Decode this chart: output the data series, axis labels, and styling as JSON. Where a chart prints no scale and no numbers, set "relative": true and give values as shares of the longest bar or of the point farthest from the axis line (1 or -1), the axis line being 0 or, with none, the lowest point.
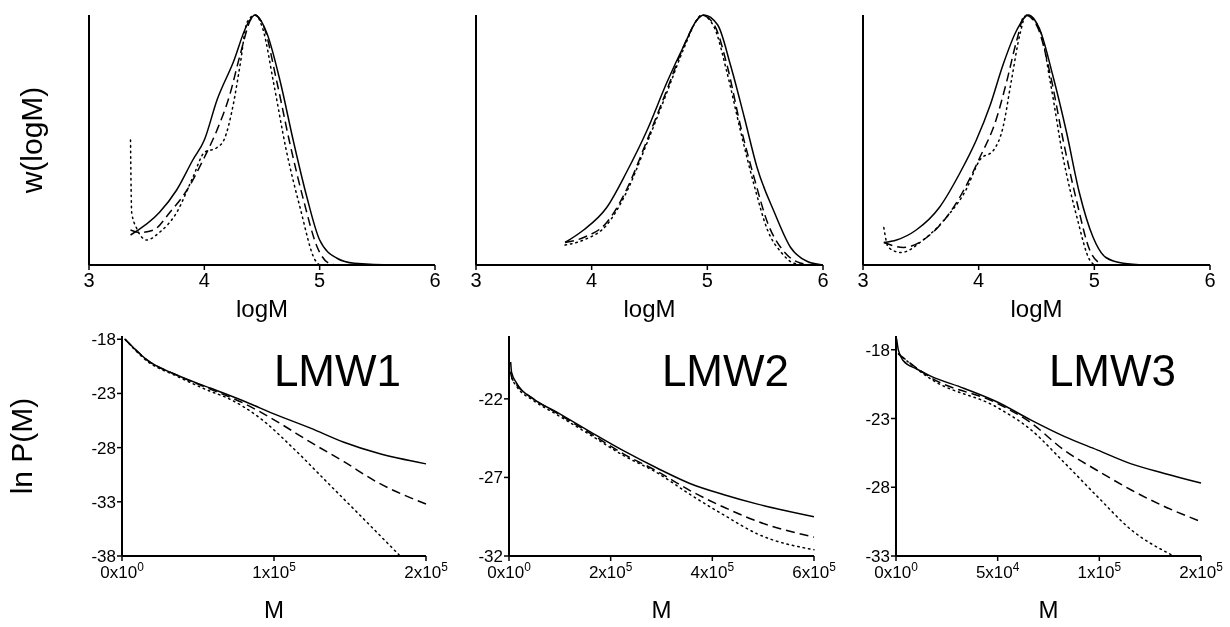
{
  "chart_data": [
    {
      "type": "line",
      "relative": true,
      "tick_labels": "x",
      "xlim": [
        3,
        6
      ],
      "xticks": [
        3,
        4,
        5,
        6
      ],
      "xlabel": "logM",
      "ylabel": "w(logM)",
      "series": [
        {
          "color": "#000000",
          "line_style": "solid",
          "x": [
            3.36,
            3.61,
            3.76,
            3.9,
            4.0,
            4.11,
            4.25,
            4.37,
            4.44,
            4.54,
            4.66,
            4.77,
            4.89,
            5.0,
            5.15,
            5.3,
            5.64,
            6.0
          ],
          "values": [
            0.12,
            0.21,
            0.3,
            0.42,
            0.5,
            0.66,
            0.81,
            0.96,
            1.0,
            0.93,
            0.73,
            0.5,
            0.27,
            0.1,
            0.027,
            0.007,
            0,
            0
          ]
        },
        {
          "color": "#000000",
          "line_style": "dashed",
          "x": [
            3.36,
            3.44,
            3.56,
            3.7,
            3.85,
            4.0,
            4.11,
            4.22,
            4.31,
            4.4,
            4.43,
            4.51,
            4.63,
            4.74,
            4.86,
            4.98,
            5.08,
            5.15
          ],
          "values": [
            0.14,
            0.13,
            0.14,
            0.21,
            0.3,
            0.43,
            0.54,
            0.68,
            0.84,
            0.98,
            1.0,
            0.96,
            0.73,
            0.49,
            0.26,
            0.07,
            0.007,
            0
          ]
        },
        {
          "color": "#000000",
          "line_style": "dotted",
          "x": [
            3.36,
            3.37,
            3.41,
            3.5,
            3.61,
            3.76,
            3.9,
            4.0,
            4.11,
            4.17,
            4.25,
            4.31,
            4.37,
            4.44,
            4.51,
            4.6,
            4.71,
            4.83,
            4.96,
            5.0
          ],
          "values": [
            0.5,
            0.21,
            0.15,
            0.1,
            0.13,
            0.21,
            0.35,
            0.45,
            0.47,
            0.5,
            0.64,
            0.8,
            0.97,
            1.0,
            0.94,
            0.73,
            0.46,
            0.23,
            0.02,
            0
          ]
        }
      ]
    },
    {
      "type": "line",
      "relative": true,
      "tick_labels": "x",
      "xlim": [
        3,
        6
      ],
      "xticks": [
        3,
        4,
        5,
        6
      ],
      "xlabel": "logM",
      "series": [
        {
          "color": "#000000",
          "line_style": "solid",
          "x": [
            3.77,
            3.93,
            4.13,
            4.3,
            4.48,
            4.65,
            4.8,
            4.91,
            4.97,
            5.09,
            5.2,
            5.32,
            5.43,
            5.58,
            5.72,
            5.87,
            6.0
          ],
          "values": [
            0.09,
            0.14,
            0.23,
            0.37,
            0.54,
            0.73,
            0.88,
            0.98,
            1.0,
            0.96,
            0.8,
            0.59,
            0.39,
            0.21,
            0.07,
            0.013,
            0
          ]
        },
        {
          "color": "#000000",
          "line_style": "dashed",
          "x": [
            3.77,
            3.93,
            4.13,
            4.3,
            4.48,
            4.65,
            4.8,
            4.91,
            4.95,
            5.06,
            5.17,
            5.29,
            5.41,
            5.52,
            5.67,
            5.81,
            5.93
          ],
          "values": [
            0.09,
            0.11,
            0.17,
            0.3,
            0.5,
            0.7,
            0.88,
            0.98,
            1.0,
            0.96,
            0.8,
            0.55,
            0.34,
            0.17,
            0.05,
            0.007,
            0
          ]
        },
        {
          "color": "#000000",
          "line_style": "dotted",
          "x": [
            3.77,
            3.93,
            4.13,
            4.3,
            4.48,
            4.65,
            4.8,
            4.91,
            4.95,
            5.06,
            5.17,
            5.29,
            5.41,
            5.52,
            5.64,
            5.75,
            5.87
          ],
          "values": [
            0.08,
            0.1,
            0.16,
            0.29,
            0.49,
            0.69,
            0.87,
            0.98,
            1.0,
            0.95,
            0.77,
            0.53,
            0.31,
            0.14,
            0.05,
            0.007,
            0
          ]
        }
      ]
    },
    {
      "type": "line",
      "relative": true,
      "tick_labels": "x",
      "xlim": [
        3,
        6
      ],
      "xticks": [
        3,
        4,
        5,
        6
      ],
      "xlabel": "logM",
      "series": [
        {
          "color": "#000000",
          "line_style": "solid",
          "x": [
            3.18,
            3.29,
            3.46,
            3.66,
            3.84,
            3.98,
            4.1,
            4.21,
            4.33,
            4.43,
            4.53,
            4.64,
            4.76,
            4.87,
            4.99,
            5.1,
            5.25,
            5.45
          ],
          "values": [
            0.09,
            0.1,
            0.14,
            0.23,
            0.37,
            0.5,
            0.64,
            0.8,
            0.94,
            1.0,
            0.94,
            0.76,
            0.53,
            0.29,
            0.11,
            0.03,
            0.007,
            0
          ]
        },
        {
          "color": "#000000",
          "line_style": "dashed",
          "x": [
            3.18,
            3.35,
            3.55,
            3.72,
            3.86,
            4.01,
            4.15,
            4.24,
            4.33,
            4.4,
            4.5,
            4.62,
            4.73,
            4.85,
            4.96,
            5.07
          ],
          "values": [
            0.09,
            0.07,
            0.11,
            0.19,
            0.29,
            0.43,
            0.58,
            0.73,
            0.9,
            1.0,
            0.96,
            0.76,
            0.5,
            0.25,
            0.06,
            0
          ]
        },
        {
          "color": "#000000",
          "line_style": "dotted",
          "x": [
            3.18,
            3.22,
            3.33,
            3.52,
            3.72,
            3.89,
            4.01,
            4.13,
            4.21,
            4.28,
            4.36,
            4.41,
            4.53,
            4.62,
            4.73,
            4.85,
            4.96,
            5.0
          ],
          "values": [
            0.15,
            0.07,
            0.05,
            0.1,
            0.19,
            0.3,
            0.42,
            0.46,
            0.55,
            0.73,
            0.93,
            1.0,
            0.94,
            0.73,
            0.43,
            0.19,
            0.02,
            0
          ]
        }
      ]
    },
    {
      "type": "line",
      "xlim": [
        0,
        200000
      ],
      "xticks": [
        {
          "value": 0,
          "label": "0x10$^{0}$"
        },
        {
          "value": 100000,
          "label": "1x10$^{5}$"
        },
        {
          "value": 200000,
          "label": "2x10$^{5}$"
        }
      ],
      "ylim": [
        -38,
        -17.7
      ],
      "yticks": [
        -18,
        -23,
        -28,
        -33,
        -38
      ],
      "xlabel": "M",
      "ylabel": "ln P(M)",
      "annotations": [
        "LMW1"
      ],
      "series": [
        {
          "color": "#000000",
          "line_style": "solid",
          "x": [
            2000,
            7700,
            16400,
            36000,
            58000,
            80000,
            102000,
            124000,
            146000,
            168000,
            200000
          ],
          "values": [
            -18.0,
            -18.8,
            -19.9,
            -21.3,
            -22.5,
            -23.7,
            -25.0,
            -26.2,
            -27.5,
            -28.5,
            -29.5
          ]
        },
        {
          "color": "#000000",
          "line_style": "dashed",
          "x": [
            2000,
            7700,
            16400,
            36000,
            58000,
            80000,
            102000,
            124000,
            146000,
            168000,
            200000
          ],
          "values": [
            -18.0,
            -18.8,
            -19.9,
            -21.3,
            -22.6,
            -23.9,
            -25.6,
            -27.5,
            -29.3,
            -31.2,
            -33.2
          ]
        },
        {
          "color": "#000000",
          "line_style": "dotted",
          "x": [
            2000,
            16400,
            36000,
            58000,
            69000,
            91000,
            113000,
            135000,
            157000,
            183000
          ],
          "values": [
            -18.0,
            -20.0,
            -21.4,
            -22.8,
            -23.4,
            -25.3,
            -28.1,
            -31.2,
            -34.3,
            -38.0
          ]
        }
      ]
    },
    {
      "type": "line",
      "xlim": [
        0,
        600000
      ],
      "xticks": [
        {
          "value": 0,
          "label": "0x10$^{0}$"
        },
        {
          "value": 200000,
          "label": "2x10$^{5}$"
        },
        {
          "value": 400000,
          "label": "4x10$^{5}$"
        },
        {
          "value": 600000,
          "label": "6x10$^{5}$"
        }
      ],
      "ylim": [
        -32,
        -18
      ],
      "yticks": [
        -22,
        -27,
        -32
      ],
      "xlabel": "M",
      "annotations": [
        "LMW2"
      ],
      "series": [
        {
          "color": "#000000",
          "line_style": "solid",
          "x": [
            3300,
            5000,
            15000,
            48000,
            94000,
            160000,
            225000,
            291000,
            357000,
            423000,
            489000,
            600000
          ],
          "values": [
            -19.65,
            -20.3,
            -21.0,
            -22.0,
            -22.85,
            -24.1,
            -25.3,
            -26.4,
            -27.4,
            -28.1,
            -28.7,
            -29.5
          ]
        },
        {
          "color": "#000000",
          "line_style": "dashed",
          "x": [
            3300,
            5000,
            15000,
            48000,
            94000,
            160000,
            225000,
            291000,
            357000,
            423000,
            489000,
            600000
          ],
          "values": [
            -20.3,
            -20.6,
            -21.1,
            -22.0,
            -22.9,
            -24.2,
            -25.5,
            -26.6,
            -27.85,
            -28.9,
            -29.8,
            -30.8
          ]
        },
        {
          "color": "#000000",
          "line_style": "dotted",
          "x": [
            3300,
            5000,
            15000,
            48000,
            94000,
            160000,
            225000,
            291000,
            357000,
            423000,
            489000,
            600000
          ],
          "values": [
            -20.3,
            -20.6,
            -21.2,
            -22.1,
            -23.0,
            -24.3,
            -25.6,
            -26.7,
            -28.1,
            -29.4,
            -30.6,
            -31.6
          ]
        }
      ]
    },
    {
      "type": "line",
      "xlim": [
        0,
        150000
      ],
      "xticks": [
        {
          "value": 0,
          "label": "0x10$^{0}$"
        },
        {
          "value": 50000,
          "label": "5x10$^{4}$"
        },
        {
          "value": 100000,
          "label": "1x10$^{5}$"
        },
        {
          "value": 150000,
          "label": "2x10$^{5}$"
        }
      ],
      "ylim": [
        -33,
        -17
      ],
      "yticks": [
        -18,
        -23,
        -28,
        -33
      ],
      "xlabel": "M",
      "annotations": [
        "LMW3"
      ],
      "series": [
        {
          "color": "#000000",
          "line_style": "solid",
          "x": [
            300,
            1200,
            3600,
            10200,
            16800,
            33300,
            49800,
            66200,
            82700,
            99200,
            115700,
            132000,
            150000
          ],
          "values": [
            -17.2,
            -18.05,
            -18.8,
            -19.4,
            -19.9,
            -20.8,
            -21.8,
            -23.1,
            -24.3,
            -25.3,
            -26.3,
            -27.0,
            -27.7
          ]
        },
        {
          "color": "#000000",
          "line_style": "dashed",
          "x": [
            1200,
            16800,
            49800,
            66200,
            82700,
            99200,
            115700,
            132000,
            150000
          ],
          "values": [
            -18.3,
            -20.0,
            -21.9,
            -23.3,
            -25.3,
            -26.8,
            -28.2,
            -29.4,
            -30.5
          ]
        },
        {
          "color": "#000000",
          "line_style": "dotted",
          "x": [
            1200,
            16800,
            49800,
            66200,
            82700,
            99200,
            115700,
            135300
          ],
          "values": [
            -18.3,
            -20.1,
            -22.2,
            -23.8,
            -26.2,
            -28.7,
            -31.1,
            -32.9
          ]
        }
      ]
    }
  ]
}
